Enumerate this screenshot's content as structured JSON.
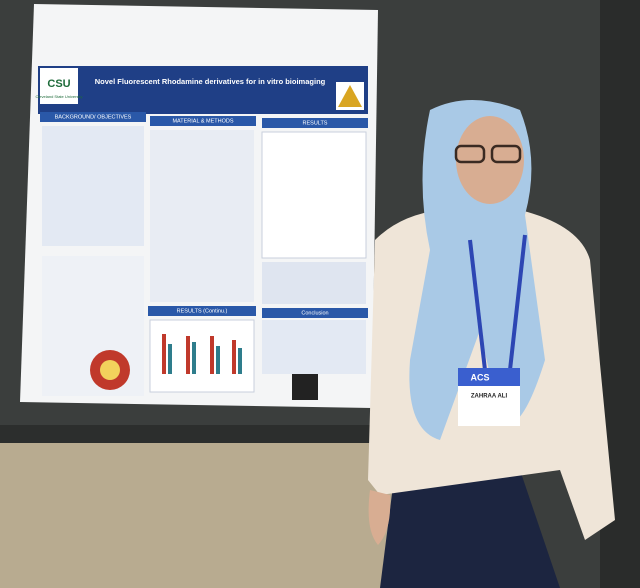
{
  "poster": {
    "title": "Novel Fluorescent Rhodamine derivatives for in vitro bioimaging",
    "logo": "CSU",
    "university": "Cleveland State University",
    "sections": [
      "BACKGROUND/ OBJECTIVES",
      "MATERIAL & METHODS",
      "RESULTS",
      "RESULTS (Continu.)",
      "Conclusion"
    ]
  },
  "badge": {
    "org": "ACS",
    "name": "ZAHRAA ALI"
  }
}
